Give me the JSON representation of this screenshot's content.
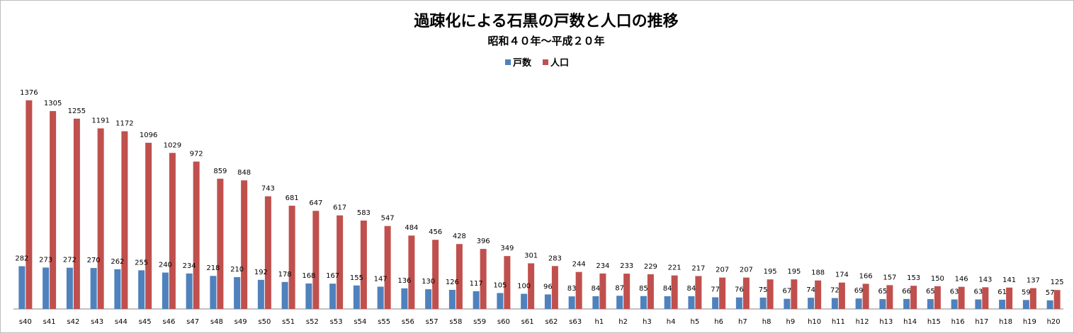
{
  "chart_data": {
    "type": "bar",
    "title": "過疎化による石黒の戸数と人口の推移",
    "subtitle": "昭和４０年～平成２０年",
    "xlabel": "",
    "ylabel": "",
    "ylim": [
      0,
      1450
    ],
    "grid": false,
    "legend_position": "top",
    "categories": [
      "s40",
      "s41",
      "s42",
      "s43",
      "s44",
      "s45",
      "s46",
      "s47",
      "s48",
      "s49",
      "s50",
      "s51",
      "s52",
      "s53",
      "s54",
      "s55",
      "s56",
      "s57",
      "s58",
      "s59",
      "s60",
      "s61",
      "s62",
      "s63",
      "h1",
      "h2",
      "h3",
      "h4",
      "h5",
      "h6",
      "h7",
      "h8",
      "h9",
      "h10",
      "h11",
      "h12",
      "h13",
      "h14",
      "h15",
      "h16",
      "h17",
      "h18",
      "h19",
      "h20"
    ],
    "series": [
      {
        "name": "戸数",
        "color": "#4f81bd",
        "values": [
          282,
          273,
          272,
          270,
          262,
          255,
          240,
          234,
          218,
          210,
          192,
          178,
          168,
          167,
          155,
          147,
          136,
          130,
          126,
          117,
          105,
          100,
          96,
          83,
          84,
          87,
          85,
          84,
          84,
          77,
          76,
          75,
          67,
          74,
          72,
          69,
          65,
          66,
          65,
          63,
          63,
          61,
          59,
          57
        ]
      },
      {
        "name": "人口",
        "color": "#c0504d",
        "values": [
          1376,
          1305,
          1255,
          1191,
          1172,
          1096,
          1029,
          972,
          859,
          848,
          743,
          681,
          647,
          617,
          583,
          547,
          484,
          456,
          428,
          396,
          349,
          301,
          283,
          244,
          234,
          233,
          229,
          221,
          217,
          207,
          207,
          195,
          195,
          188,
          174,
          166,
          157,
          153,
          150,
          146,
          143,
          141,
          137,
          125
        ]
      }
    ]
  }
}
